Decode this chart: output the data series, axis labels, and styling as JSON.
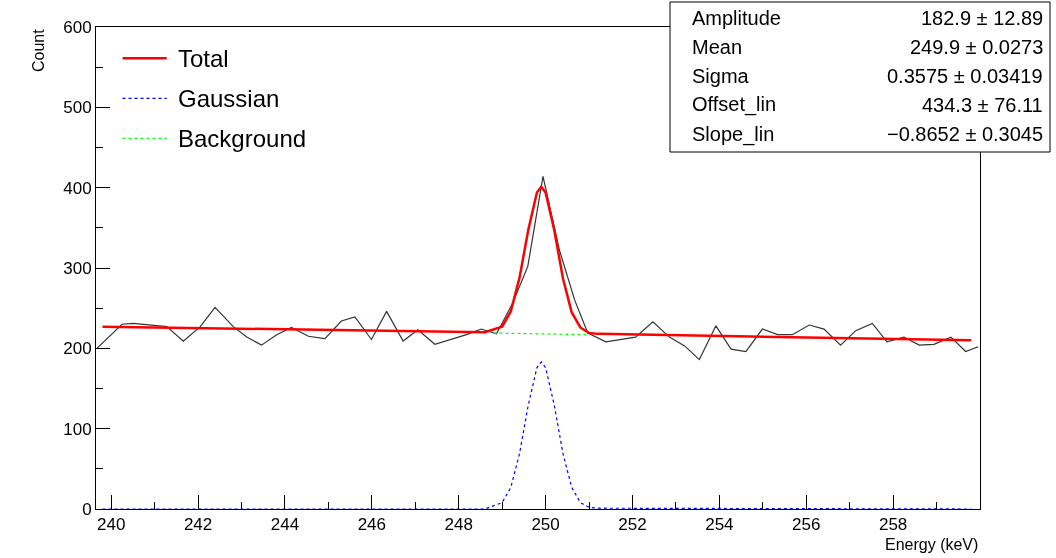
{
  "chart_data": {
    "type": "line",
    "xlabel": "Energy (keV)",
    "ylabel": "Count",
    "xlim": [
      239.65,
      260.0
    ],
    "ylim": [
      0,
      600
    ],
    "xticks": [
      240,
      242,
      244,
      246,
      248,
      250,
      252,
      254,
      256,
      258
    ],
    "yticks": [
      0,
      100,
      200,
      300,
      400,
      500,
      600
    ],
    "legend": "top left",
    "marker": "none",
    "series": [
      {
        "color": "#333333",
        "line_style": "solid",
        "x": [
          239.67,
          240.25,
          240.51,
          241.28,
          241.66,
          242.05,
          242.39,
          242.81,
          243.12,
          243.46,
          243.81,
          244.15,
          244.54,
          244.92,
          245.3,
          245.61,
          245.99,
          246.34,
          246.72,
          247.06,
          247.45,
          248.18,
          248.52,
          248.87,
          249.24,
          249.59,
          249.94,
          250.32,
          250.67,
          250.97,
          251.39,
          252.07,
          252.47,
          252.85,
          253.2,
          253.54,
          253.92,
          254.27,
          254.61,
          254.99,
          255.34,
          255.68,
          256.07,
          256.41,
          256.79,
          257.14,
          257.52,
          257.86,
          258.25,
          258.6,
          258.94,
          259.33,
          259.67,
          259.96
        ],
        "values": [
          200,
          230,
          231,
          227,
          209,
          227,
          251,
          227,
          214,
          204,
          217,
          226,
          215,
          212,
          234,
          239,
          211,
          246,
          209,
          223,
          205,
          217,
          224,
          218,
          256,
          302,
          414,
          322,
          260,
          219,
          208,
          214,
          233,
          214,
          203,
          186,
          228,
          199,
          196,
          224,
          217,
          217,
          229,
          224,
          204,
          222,
          231,
          208,
          214,
          204,
          205,
          214,
          196,
          202
        ]
      },
      {
        "name": "Background",
        "color": "#00ff00",
        "line_style": "dotted",
        "x": [
          248.8,
          251.0
        ],
        "values": [
          219,
          217
        ]
      },
      {
        "name": "Gaussian",
        "color": "#0000ff",
        "line_style": "dotted",
        "x": [
          239.8,
          248.6,
          249.0,
          249.2,
          249.4,
          249.6,
          249.8,
          249.9,
          250.0,
          250.2,
          250.4,
          250.6,
          250.8,
          251.0,
          251.2,
          259.8
        ],
        "values": [
          0,
          0,
          8,
          27,
          69,
          129,
          176,
          183,
          176,
          129,
          69,
          27,
          8,
          2,
          1,
          0
        ]
      },
      {
        "name": "Total",
        "color": "#ff0000",
        "line_style": "solid",
        "x": [
          239.8,
          248.6,
          249.0,
          249.2,
          249.4,
          249.6,
          249.8,
          249.9,
          250.0,
          250.2,
          250.4,
          250.6,
          250.8,
          251.0,
          251.2,
          259.8
        ],
        "values": [
          227,
          220,
          227,
          246,
          288,
          347,
          394,
          401,
          394,
          347,
          287,
          245,
          226,
          219,
          218,
          210
        ]
      }
    ],
    "annotations": [
      "Amplitude",
      "182.9 ± 12.89",
      "Mean",
      "249.9 ± 0.0273",
      "Sigma",
      "0.3575 ± 0.03419",
      "Offset_lin",
      "434.3 ± 76.11",
      "Slope_lin",
      "−0.8652 ± 0.3045"
    ]
  }
}
